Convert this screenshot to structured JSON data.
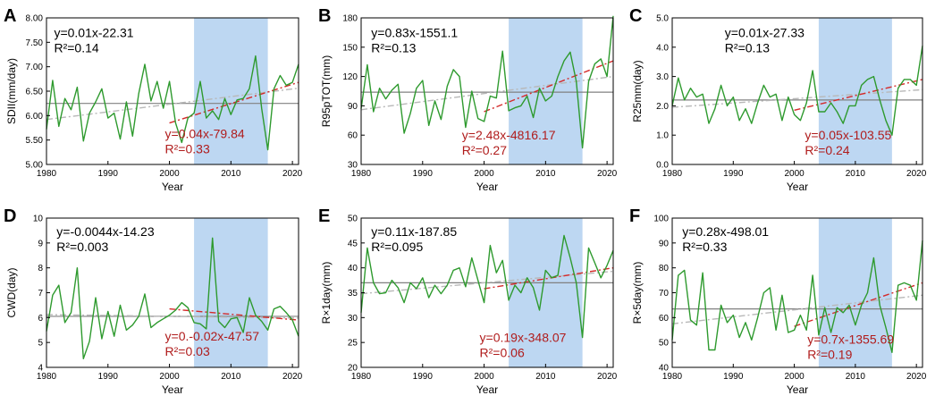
{
  "colors": {
    "series": "#2e9a2e",
    "mean": "#808080",
    "trend_full": "#b8b8b8",
    "trend_sub": "#d42a2a",
    "shade": "#bdd7f2",
    "eq_main": "#000000",
    "eq_sub": "#b01c1c"
  },
  "chart_data": [
    {
      "panel": "A",
      "type": "line",
      "ylabel": "SDII(mm/day)",
      "xlabel": "Year",
      "xlim": [
        1980,
        2021
      ],
      "ylim": [
        5.0,
        8.0
      ],
      "xticks": [
        1980,
        1990,
        2000,
        2010,
        2020
      ],
      "yticks": [
        5.0,
        5.5,
        6.0,
        6.5,
        7.0,
        7.5,
        8.0
      ],
      "ytick_labels": [
        "5.00",
        "5.50",
        "6.00",
        "6.50",
        "7.00",
        "7.50",
        "8.00"
      ],
      "shade": [
        2004,
        2016
      ],
      "mean": 6.25,
      "trend_full": {
        "x": [
          1980,
          2021
        ],
        "y": [
          5.92,
          6.56
        ]
      },
      "trend_sub": {
        "x": [
          2000,
          2021
        ],
        "y": [
          5.85,
          6.68
        ]
      },
      "eq_full": {
        "text": "y=0.01x-22.31",
        "r2": "R²=0.14"
      },
      "eq_sub": {
        "text": "y=0.04x-79.84",
        "r2": "R²=0.33"
      },
      "x": [
        1980,
        1981,
        1982,
        1983,
        1984,
        1985,
        1986,
        1987,
        1988,
        1989,
        1990,
        1991,
        1992,
        1993,
        1994,
        1995,
        1996,
        1997,
        1998,
        1999,
        2000,
        2001,
        2002,
        2003,
        2004,
        2005,
        2006,
        2007,
        2008,
        2009,
        2010,
        2011,
        2012,
        2013,
        2014,
        2015,
        2016,
        2017,
        2018,
        2019,
        2020,
        2021
      ],
      "y": [
        5.72,
        6.72,
        5.78,
        6.35,
        6.12,
        6.58,
        5.48,
        6.05,
        6.28,
        6.55,
        5.95,
        6.05,
        5.52,
        6.28,
        5.58,
        6.45,
        7.05,
        6.3,
        6.7,
        6.15,
        6.7,
        5.85,
        5.45,
        5.95,
        6.05,
        6.7,
        5.95,
        6.1,
        5.92,
        6.35,
        6.02,
        6.32,
        6.35,
        6.55,
        7.22,
        6.15,
        5.3,
        6.55,
        6.82,
        6.62,
        6.68,
        7.05
      ]
    },
    {
      "panel": "B",
      "type": "line",
      "ylabel": "R95pTOT(mm)",
      "xlabel": "Year",
      "xlim": [
        1980,
        2021
      ],
      "ylim": [
        30,
        180
      ],
      "xticks": [
        1980,
        1990,
        2000,
        2010,
        2020
      ],
      "yticks": [
        30,
        60,
        90,
        120,
        150,
        180
      ],
      "ytick_labels": [
        "30",
        "60",
        "90",
        "120",
        "150",
        "180"
      ],
      "shade": [
        2004,
        2016
      ],
      "mean": 104,
      "trend_full": {
        "x": [
          1980,
          2021
        ],
        "y": [
          86,
          120
        ]
      },
      "trend_sub": {
        "x": [
          2000,
          2021
        ],
        "y": [
          84,
          136
        ]
      },
      "eq_full": {
        "text": "y=0.83x-1551.1",
        "r2": "R²=0.13"
      },
      "eq_sub": {
        "text": "y=2.48x-4816.17",
        "r2": "R²=0.27"
      },
      "x": [
        1980,
        1981,
        1982,
        1983,
        1984,
        1985,
        1986,
        1987,
        1988,
        1989,
        1990,
        1991,
        1992,
        1993,
        1994,
        1995,
        1996,
        1997,
        1998,
        1999,
        2000,
        2001,
        2002,
        2003,
        2004,
        2005,
        2006,
        2007,
        2008,
        2009,
        2010,
        2011,
        2012,
        2013,
        2014,
        2015,
        2016,
        2017,
        2018,
        2019,
        2020,
        2021
      ],
      "y": [
        87,
        132,
        84,
        108,
        97,
        106,
        112,
        62,
        82,
        108,
        116,
        70,
        95,
        76,
        110,
        127,
        120,
        68,
        105,
        77,
        74,
        100,
        98,
        146,
        85,
        88,
        90,
        100,
        78,
        108,
        95,
        100,
        120,
        136,
        145,
        115,
        47,
        115,
        133,
        138,
        120,
        182
      ]
    },
    {
      "panel": "C",
      "type": "line",
      "ylabel": "R25mm(day)",
      "xlabel": "Year",
      "xlim": [
        1980,
        2021
      ],
      "ylim": [
        0.0,
        5.0
      ],
      "xticks": [
        1980,
        1990,
        2000,
        2010,
        2020
      ],
      "yticks": [
        0.0,
        1.0,
        2.0,
        3.0,
        4.0,
        5.0
      ],
      "ytick_labels": [
        "0.0",
        "1.0",
        "2.0",
        "3.0",
        "4.0",
        "5.0"
      ],
      "shade": [
        2004,
        2016
      ],
      "mean": 2.2,
      "trend_full": {
        "x": [
          1980,
          2021
        ],
        "y": [
          1.95,
          2.55
        ]
      },
      "trend_sub": {
        "x": [
          2000,
          2021
        ],
        "y": [
          1.85,
          2.9
        ]
      },
      "eq_full": {
        "text": "y=0.01x-27.33",
        "r2": "R²=0.13"
      },
      "eq_sub": {
        "text": "y=0.05x-103.55",
        "r2": "R²=0.24"
      },
      "x": [
        1980,
        1981,
        1982,
        1983,
        1984,
        1985,
        1986,
        1987,
        1988,
        1989,
        1990,
        1991,
        1992,
        1993,
        1994,
        1995,
        1996,
        1997,
        1998,
        1999,
        2000,
        2001,
        2002,
        2003,
        2004,
        2005,
        2006,
        2007,
        2008,
        2009,
        2010,
        2011,
        2012,
        2013,
        2014,
        2015,
        2016,
        2017,
        2018,
        2019,
        2020,
        2021
      ],
      "y": [
        2.0,
        2.95,
        2.2,
        2.6,
        2.3,
        2.4,
        1.4,
        1.9,
        2.7,
        2.0,
        2.3,
        1.5,
        1.9,
        1.4,
        2.1,
        2.7,
        2.3,
        2.4,
        1.5,
        2.3,
        1.7,
        1.5,
        2.1,
        3.2,
        1.8,
        1.8,
        2.1,
        1.8,
        1.4,
        2.0,
        2.0,
        2.7,
        2.9,
        3.0,
        2.2,
        1.5,
        1.0,
        2.6,
        2.9,
        2.9,
        2.7,
        4.05
      ]
    },
    {
      "panel": "D",
      "type": "line",
      "ylabel": "CWD(day)",
      "xlabel": "Year",
      "xlim": [
        1980,
        2021
      ],
      "ylim": [
        4,
        10
      ],
      "xticks": [
        1980,
        1990,
        2000,
        2010,
        2020
      ],
      "yticks": [
        4,
        5,
        6,
        7,
        8,
        9,
        10
      ],
      "ytick_labels": [
        "4",
        "5",
        "6",
        "7",
        "8",
        "9",
        "10"
      ],
      "shade": [
        2004,
        2016
      ],
      "mean": 6.05,
      "trend_full": {
        "x": [
          1980,
          2021
        ],
        "y": [
          6.12,
          5.98
        ]
      },
      "trend_sub": {
        "x": [
          2000,
          2021
        ],
        "y": [
          6.35,
          5.9
        ]
      },
      "eq_full": {
        "text": "y=-0.0044x-14.23",
        "r2": "R²=0.003"
      },
      "eq_sub": {
        "text": "y=0.-0.02x-47.57",
        "r2": "R²=0.03"
      },
      "x": [
        1980,
        1981,
        1982,
        1983,
        1984,
        1985,
        1986,
        1987,
        1988,
        1989,
        1990,
        1991,
        1992,
        1993,
        1994,
        1995,
        1996,
        1997,
        1998,
        1999,
        2000,
        2001,
        2002,
        2003,
        2004,
        2005,
        2006,
        2007,
        2008,
        2009,
        2010,
        2011,
        2012,
        2013,
        2014,
        2015,
        2016,
        2017,
        2018,
        2019,
        2020,
        2021
      ],
      "y": [
        5.45,
        6.9,
        7.3,
        5.8,
        6.2,
        8.0,
        4.35,
        5.05,
        6.8,
        5.15,
        6.25,
        5.25,
        6.5,
        5.5,
        5.7,
        6.05,
        6.95,
        5.6,
        5.8,
        5.95,
        6.1,
        6.3,
        6.6,
        6.4,
        5.8,
        5.75,
        5.55,
        9.2,
        5.85,
        5.6,
        5.95,
        6.0,
        5.4,
        6.8,
        6.1,
        5.85,
        5.5,
        6.35,
        6.45,
        6.2,
        5.9,
        5.25
      ]
    },
    {
      "panel": "E",
      "type": "line",
      "ylabel": "R×1day(mm)",
      "xlabel": "Year",
      "xlim": [
        1980,
        2021
      ],
      "ylim": [
        20,
        50
      ],
      "xticks": [
        1980,
        1990,
        2000,
        2010,
        2020
      ],
      "yticks": [
        20,
        25,
        30,
        35,
        40,
        45,
        50
      ],
      "ytick_labels": [
        "20",
        "25",
        "30",
        "35",
        "40",
        "45",
        "50"
      ],
      "shade": [
        2004,
        2016
      ],
      "mean": 37.0,
      "trend_full": {
        "x": [
          1980,
          2021
        ],
        "y": [
          34.8,
          39.3
        ]
      },
      "trend_sub": {
        "x": [
          2000,
          2021
        ],
        "y": [
          35.8,
          40.0
        ]
      },
      "eq_full": {
        "text": "y=0.11x-187.85",
        "r2": "R²=0.095"
      },
      "eq_sub": {
        "text": "y=0.19x-348.07",
        "r2": "R²=0.06"
      },
      "x": [
        1980,
        1981,
        1982,
        1983,
        1984,
        1985,
        1986,
        1987,
        1988,
        1989,
        1990,
        1991,
        1992,
        1993,
        1994,
        1995,
        1996,
        1997,
        1998,
        1999,
        2000,
        2001,
        2002,
        2003,
        2004,
        2005,
        2006,
        2007,
        2008,
        2009,
        2010,
        2011,
        2012,
        2013,
        2014,
        2015,
        2016,
        2017,
        2018,
        2019,
        2020,
        2021
      ],
      "y": [
        31.0,
        44.0,
        37.0,
        34.8,
        35.0,
        37.5,
        36.0,
        33.0,
        37.0,
        35.8,
        38.0,
        34.0,
        36.5,
        34.8,
        36.5,
        39.5,
        40.0,
        36.2,
        42.0,
        37.5,
        33.0,
        44.5,
        39.0,
        41.5,
        33.5,
        36.5,
        35.0,
        38.0,
        36.0,
        31.5,
        39.5,
        38.0,
        38.5,
        46.5,
        42.0,
        37.0,
        26.0,
        44.0,
        41.0,
        38.0,
        40.5,
        43.5
      ]
    },
    {
      "panel": "F",
      "type": "line",
      "ylabel": "R×5day(mm)",
      "xlabel": "Year",
      "xlim": [
        1980,
        2021
      ],
      "ylim": [
        40,
        100
      ],
      "xticks": [
        1980,
        1990,
        2000,
        2010,
        2020
      ],
      "yticks": [
        40,
        50,
        60,
        70,
        80,
        90,
        100
      ],
      "ytick_labels": [
        "40",
        "50",
        "60",
        "70",
        "80",
        "90",
        "100"
      ],
      "shade": [
        2004,
        2016
      ],
      "mean": 63.5,
      "trend_full": {
        "x": [
          1980,
          2021
        ],
        "y": [
          57.5,
          69.0
        ]
      },
      "trend_sub": {
        "x": [
          2000,
          2021
        ],
        "y": [
          56.5,
          74.0
        ]
      },
      "eq_full": {
        "text": "y=0.28x-498.01",
        "r2": "R²=0.33"
      },
      "eq_sub": {
        "text": "y=0.7x-1355.69",
        "r2": "R²=0.19"
      },
      "x": [
        1980,
        1981,
        1982,
        1983,
        1984,
        1985,
        1986,
        1987,
        1988,
        1989,
        1990,
        1991,
        1992,
        1993,
        1994,
        1995,
        1996,
        1997,
        1998,
        1999,
        2000,
        2001,
        2002,
        2003,
        2004,
        2005,
        2006,
        2007,
        2008,
        2009,
        2010,
        2011,
        2012,
        2013,
        2014,
        2015,
        2016,
        2017,
        2018,
        2019,
        2020,
        2021
      ],
      "y": [
        51.0,
        77.0,
        79.0,
        59.0,
        57.0,
        78.0,
        47.0,
        47.0,
        65.0,
        58.0,
        61.0,
        52.0,
        58.0,
        51.0,
        60.0,
        70.0,
        72.0,
        55.0,
        69.0,
        54.0,
        55.0,
        61.0,
        55.0,
        77.0,
        53.0,
        64.0,
        54.0,
        64.0,
        62.0,
        65.0,
        57.0,
        65.0,
        70.0,
        84.0,
        65.0,
        56.0,
        46.0,
        73.0,
        74.0,
        73.0,
        67.0,
        91.0
      ]
    }
  ]
}
